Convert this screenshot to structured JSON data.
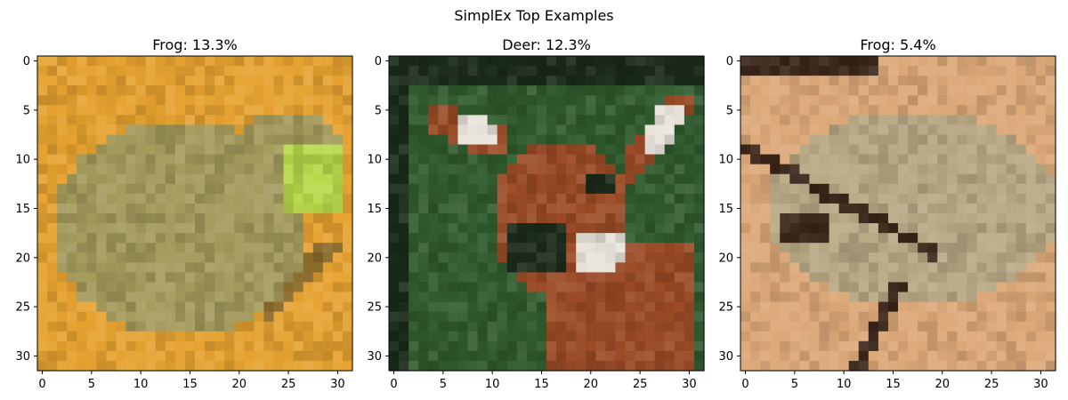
{
  "figure": {
    "title": "SimplEx Top Examples"
  },
  "chart_data": [
    {
      "type": "image",
      "title": "Frog: 13.3%",
      "xlim": [
        -0.5,
        31.5
      ],
      "ylim": [
        31.5,
        -0.5
      ],
      "xticks": [
        0,
        5,
        10,
        15,
        20,
        25,
        30
      ],
      "yticks": [
        0,
        5,
        10,
        15,
        20,
        25,
        30
      ],
      "image_description": "pixelated green-brown frog on an orange background",
      "palette": {
        "background": "#e6a230",
        "subject": "#a39a5c",
        "accent": "#b8d84a",
        "shadow": "#8a6a2a"
      }
    },
    {
      "type": "image",
      "title": "Deer: 12.3%",
      "xlim": [
        -0.5,
        31.5
      ],
      "ylim": [
        31.5,
        -0.5
      ],
      "xticks": [
        0,
        5,
        10,
        15,
        20,
        25,
        30
      ],
      "yticks": [
        0,
        5,
        10,
        15,
        20,
        25,
        30
      ],
      "image_description": "pixelated brown deer head with large ears against dark green foliage",
      "palette": {
        "background": "#2f5a2c",
        "subject": "#9a4a25",
        "accent": "#e8e4dc",
        "shadow": "#1a2a1a"
      }
    },
    {
      "type": "image",
      "title": "Frog: 5.4%",
      "xlim": [
        -0.5,
        31.5
      ],
      "ylim": [
        31.5,
        -0.5
      ],
      "xticks": [
        0,
        5,
        10,
        15,
        20,
        25,
        30
      ],
      "yticks": [
        0,
        5,
        10,
        15,
        20,
        25,
        30
      ],
      "image_description": "pixelated tan frog with dark markings on a light brown background",
      "palette": {
        "background": "#dca878",
        "subject": "#b8a884",
        "accent": "#3a2418",
        "shadow": "#8a6a4a"
      }
    }
  ]
}
